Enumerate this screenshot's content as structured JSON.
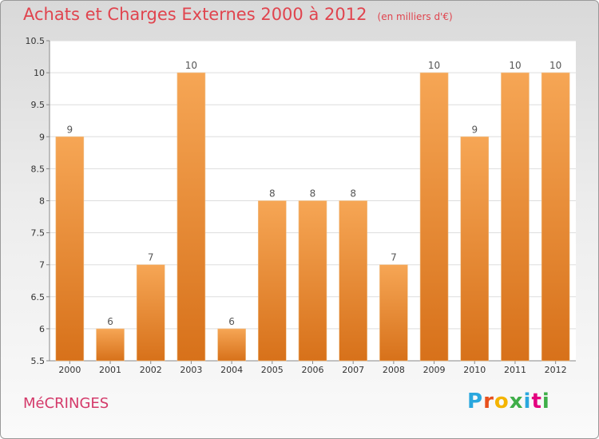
{
  "header": {
    "title": "Achats et Charges Externes 2000 à 2012",
    "subtitle": "(en milliers d'€)"
  },
  "footer": {
    "commune": "MéCRINGES",
    "brand": "Proxiti",
    "brand_colors": [
      "#2aa7de",
      "#e8501c",
      "#f4b400",
      "#3fae49",
      "#2aa7de",
      "#e4007f",
      "#3fae49"
    ]
  },
  "colors": {
    "bar_top": "#f6a655",
    "bar_bottom": "#d7711a",
    "title": "#e0444e",
    "commune": "#d43a6a"
  },
  "chart_data": {
    "type": "bar",
    "title": "Achats et Charges Externes 2000 à 2012",
    "subtitle": "(en milliers d'€)",
    "categories": [
      "2000",
      "2001",
      "2002",
      "2003",
      "2004",
      "2005",
      "2006",
      "2007",
      "2008",
      "2009",
      "2010",
      "2011",
      "2012"
    ],
    "values": [
      9,
      6,
      7,
      10,
      6,
      8,
      8,
      8,
      7,
      10,
      9,
      10,
      10
    ],
    "data_labels": [
      "9",
      "6",
      "7",
      "10",
      "6",
      "8",
      "8",
      "8",
      "7",
      "10",
      "9",
      "10",
      "10"
    ],
    "ylim": [
      5.5,
      10.5
    ],
    "yticks": [
      5.5,
      6,
      6.5,
      7,
      7.5,
      8,
      8.5,
      9,
      9.5,
      10,
      10.5
    ],
    "ytick_labels": [
      "5.5",
      "6",
      "6.5",
      "7",
      "7.5",
      "8",
      "8.5",
      "9",
      "9.5",
      "10",
      "10.5"
    ],
    "grid": true,
    "xlabel": "",
    "ylabel": ""
  }
}
